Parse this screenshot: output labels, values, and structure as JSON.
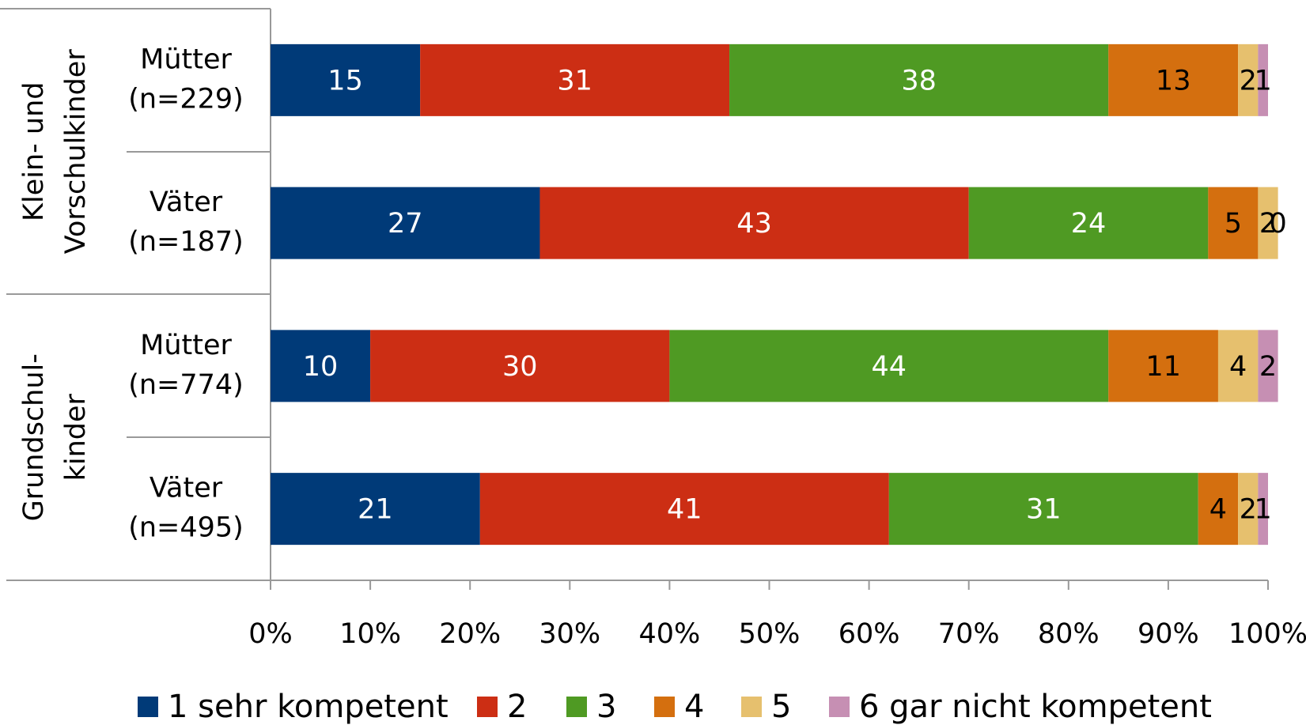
{
  "chart_data": {
    "type": "stacked-barh",
    "groups": [
      {
        "label": [
          "Klein- und",
          "Vorschulkinder"
        ],
        "size": 2
      },
      {
        "label": [
          "Grundschul-",
          "kinder"
        ],
        "size": 2
      }
    ],
    "categories": [
      [
        "Mütter",
        "(n=229)"
      ],
      [
        "Väter",
        "(n=187)"
      ],
      [
        "Mütter",
        "(n=774)"
      ],
      [
        "Väter",
        "(n=495)"
      ]
    ],
    "series": [
      {
        "name": "1 sehr kompetent",
        "color": "#003a78",
        "values": [
          15,
          27,
          10,
          21
        ]
      },
      {
        "name": "2",
        "color": "#cc2e14",
        "values": [
          31,
          43,
          30,
          41
        ]
      },
      {
        "name": "3",
        "color": "#4f9a23",
        "values": [
          38,
          24,
          44,
          31
        ]
      },
      {
        "name": "4",
        "color": "#d46f0f",
        "values": [
          13,
          5,
          11,
          4
        ]
      },
      {
        "name": "5",
        "color": "#e6c06e",
        "values": [
          2,
          2,
          4,
          2
        ]
      },
      {
        "name": "6 gar nicht kompetent",
        "color": "#c68fb3",
        "values": [
          1,
          0,
          2,
          1
        ]
      }
    ],
    "xlim": [
      0,
      100
    ],
    "xticks": [
      {
        "value": 0,
        "label": "0%"
      },
      {
        "value": 10,
        "label": "10%"
      },
      {
        "value": 20,
        "label": "20%"
      },
      {
        "value": 30,
        "label": "30%"
      },
      {
        "value": 40,
        "label": "40%"
      },
      {
        "value": 50,
        "label": "50%"
      },
      {
        "value": 60,
        "label": "60%"
      },
      {
        "value": 70,
        "label": "70%"
      },
      {
        "value": 80,
        "label": "80%"
      },
      {
        "value": 90,
        "label": "90%"
      },
      {
        "value": 100,
        "label": "100%"
      }
    ],
    "legend": "bottom"
  }
}
